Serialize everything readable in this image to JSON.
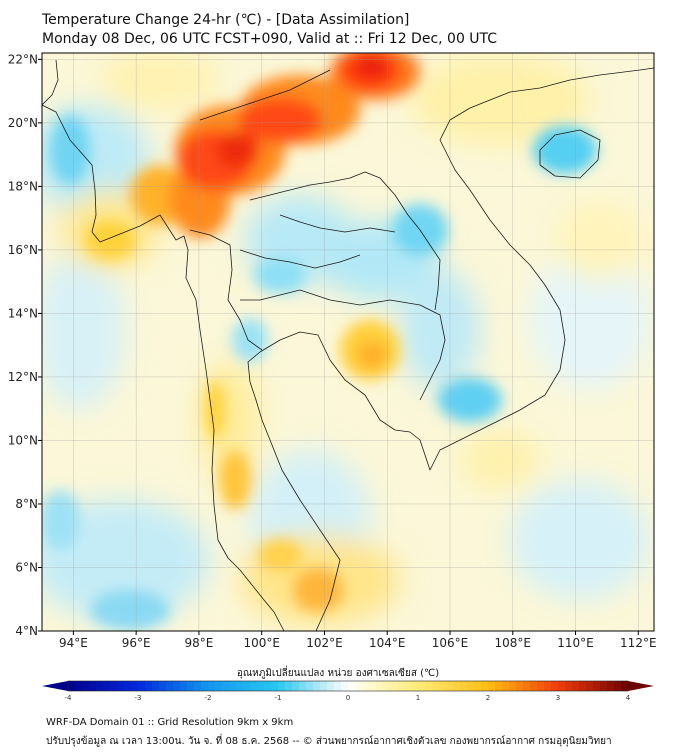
{
  "title": "Temperature Change 24-hr (℃) - [Data Assimilation]",
  "subtitle": "Monday 08 Dec, 06 UTC FCST+090, Valid at :: Fri 12 Dec, 00 UTC",
  "map": {
    "lon_range": [
      93,
      112.5
    ],
    "lat_range": [
      4,
      22.2
    ],
    "lon_ticks": [
      "94°E",
      "96°E",
      "98°E",
      "100°E",
      "102°E",
      "104°E",
      "106°E",
      "108°E",
      "110°E",
      "112°E"
    ],
    "lat_ticks": [
      "4°N",
      "6°N",
      "8°N",
      "10°N",
      "12°N",
      "14°N",
      "16°N",
      "18°N",
      "20°N",
      "22°N"
    ],
    "colors": {
      "cold": "#1fc6f0",
      "neutral": "#ffffff",
      "warm": "#ffd31a",
      "hot": "#ee2a0c",
      "very_hot": "#b30000"
    }
  },
  "colorbar": {
    "label": "อุณหภูมิเปลี่ยนแปลง หน่วย องศาเซลเซียส (℃)",
    "ticks": [
      "-4",
      "-3",
      "-2",
      "-1",
      "0",
      "1",
      "2",
      "3",
      "4"
    ],
    "min": -4,
    "max": 4
  },
  "footer": {
    "line1": "WRF-DA Domain 01 :: Grid Resolution 9km x 9km",
    "line2": "ปรับปรุงข้อมูล ณ เวลา 13:00น. วัน จ. ที่ 08 ธ.ค. 2568 -- © ส่วนพยากรณ์อากาศเชิงตัวเลข กองพยากรณ์อากาศ กรมอุตุนิยมวิทยา"
  }
}
